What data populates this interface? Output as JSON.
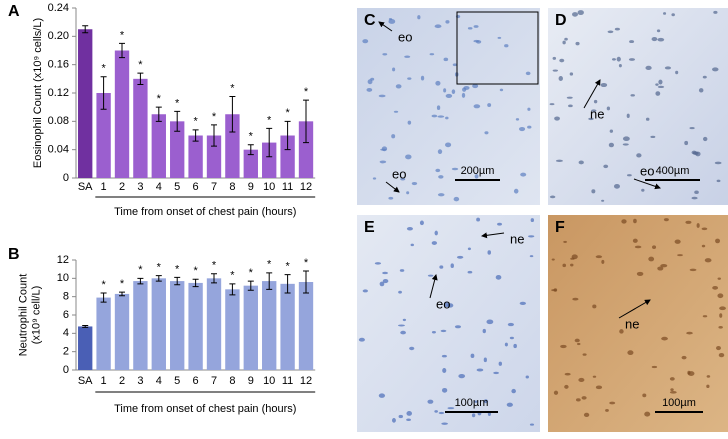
{
  "chart_data": [
    {
      "type": "bar",
      "panel_label": "A",
      "ylabel": [
        "Eosinophil Count (x10⁹ cells/L)"
      ],
      "xlabel": "Time from onset of chest pain (hours)",
      "categories": [
        "SA",
        "1",
        "2",
        "3",
        "4",
        "5",
        "6",
        "7",
        "8",
        "9",
        "10",
        "11",
        "12"
      ],
      "values": [
        0.21,
        0.12,
        0.18,
        0.14,
        0.09,
        0.08,
        0.06,
        0.06,
        0.09,
        0.04,
        0.05,
        0.06,
        0.08
      ],
      "errors": [
        0.005,
        0.023,
        0.01,
        0.008,
        0.01,
        0.014,
        0.008,
        0.015,
        0.025,
        0.007,
        0.02,
        0.02,
        0.03
      ],
      "significance": [
        null,
        "*",
        "*",
        "*",
        "*",
        "*",
        "*",
        "*",
        "*",
        "*",
        "*",
        "*",
        "*"
      ],
      "colors": [
        "#7030a0",
        "#9b5fcf",
        "#9b5fcf",
        "#9b5fcf",
        "#9b5fcf",
        "#9b5fcf",
        "#9b5fcf",
        "#9b5fcf",
        "#9b5fcf",
        "#9b5fcf",
        "#9b5fcf",
        "#9b5fcf",
        "#9b5fcf"
      ],
      "category_label_colors": [
        "#7030a0",
        "#000000",
        "#000000",
        "#000000",
        "#000000",
        "#000000",
        "#000000",
        "#000000",
        "#000000",
        "#000000",
        "#000000",
        "#000000",
        "#000000"
      ],
      "ylim": [
        0,
        0.24
      ],
      "yticks": [
        0,
        0.04,
        0.08,
        0.12,
        0.16,
        {
          "value": 0.2,
          "label": "0.20"
        },
        0.24
      ]
    },
    {
      "type": "bar",
      "panel_label": "B",
      "ylabel": [
        "Neutrophil Count",
        "(x10⁹ cell/L)"
      ],
      "xlabel": "Time from onset of chest pain (hours)",
      "categories": [
        "SA",
        "1",
        "2",
        "3",
        "4",
        "5",
        "6",
        "7",
        "8",
        "9",
        "10",
        "11",
        "12"
      ],
      "values": [
        4.75,
        7.9,
        8.3,
        9.7,
        10.0,
        9.7,
        9.5,
        10.0,
        8.8,
        9.2,
        9.7,
        9.4,
        9.6
      ],
      "errors": [
        0.1,
        0.5,
        0.2,
        0.3,
        0.3,
        0.4,
        0.4,
        0.5,
        0.6,
        0.5,
        0.9,
        1.0,
        1.2
      ],
      "significance": [
        null,
        "*",
        "*",
        "*",
        "*",
        "*",
        "*",
        "*",
        "*",
        "*",
        "*",
        "*",
        "*"
      ],
      "colors": [
        "#4a5fb5",
        "#95a5dc",
        "#95a5dc",
        "#95a5dc",
        "#95a5dc",
        "#95a5dc",
        "#95a5dc",
        "#95a5dc",
        "#95a5dc",
        "#95a5dc",
        "#95a5dc",
        "#95a5dc",
        "#95a5dc"
      ],
      "category_label_colors": [
        "#4a5fb5",
        "#000000",
        "#000000",
        "#000000",
        "#000000",
        "#000000",
        "#000000",
        "#000000",
        "#000000",
        "#000000",
        "#000000",
        "#000000",
        "#000000"
      ],
      "ylim": [
        0,
        12
      ],
      "yticks": [
        0,
        2,
        4,
        6,
        8,
        10,
        12
      ]
    }
  ],
  "panels": [
    {
      "label": "C",
      "annotations": [
        "eo",
        "eo"
      ],
      "scale_bar": "200µm"
    },
    {
      "label": "D",
      "annotations": [
        "ne",
        "eo"
      ],
      "scale_bar": "400µm"
    },
    {
      "label": "E",
      "annotations": [
        "ne",
        "eo"
      ],
      "scale_bar": "100µm"
    },
    {
      "label": "F",
      "annotations": [
        "ne"
      ],
      "scale_bar": "100µm"
    }
  ]
}
